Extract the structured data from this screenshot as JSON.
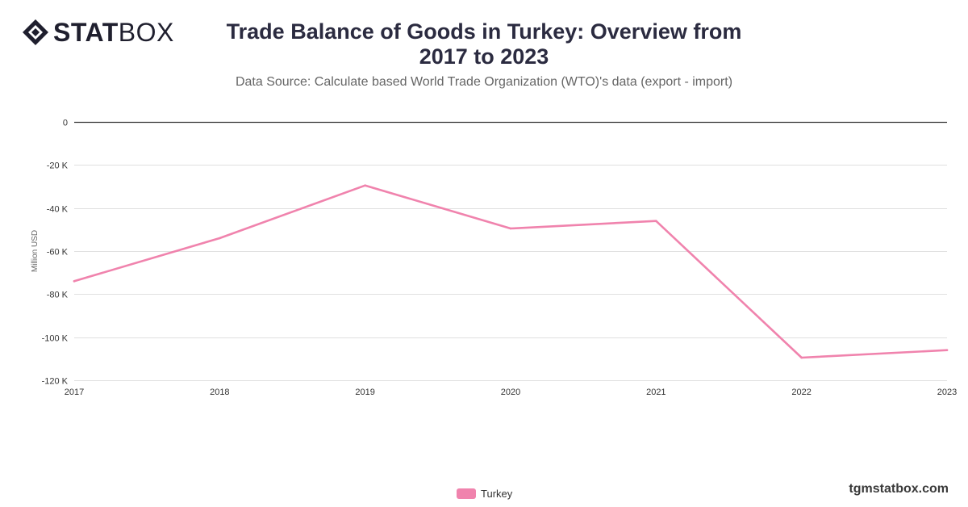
{
  "brand": {
    "logo_bold": "STAT",
    "logo_light": "BOX"
  },
  "header": {
    "title": "Trade Balance of Goods in Turkey: Overview from 2017 to 2023",
    "subtitle": "Data Source: Calculate based World Trade Organization (WTO)'s data (export - import)"
  },
  "footer": {
    "site": "tgmstatbox.com"
  },
  "colors": {
    "series": "#f083ad",
    "zero_line": "#333333",
    "grid": "#e0e0e0"
  },
  "chart_data": {
    "type": "line",
    "title": "Trade Balance of Goods in Turkey: Overview from 2017 to 2023",
    "subtitle": "Data Source: Calculate based World Trade Organization (WTO)'s data (export - import)",
    "xlabel": "",
    "ylabel": "Million USD",
    "x": [
      "2017",
      "2018",
      "2019",
      "2020",
      "2021",
      "2022",
      "2023"
    ],
    "ylim": [
      -120000,
      0
    ],
    "yticks": [
      0,
      -20000,
      -40000,
      -60000,
      -80000,
      -100000,
      -120000
    ],
    "ytick_labels": [
      "0",
      "-20 K",
      "-40 K",
      "-60 K",
      "-80 K",
      "-100 K",
      "-120 K"
    ],
    "grid": true,
    "legend_position": "bottom-center",
    "series": [
      {
        "name": "Turkey",
        "values": [
          -74000,
          -54000,
          -29500,
          -49500,
          -46000,
          -109500,
          -106000
        ]
      }
    ]
  }
}
